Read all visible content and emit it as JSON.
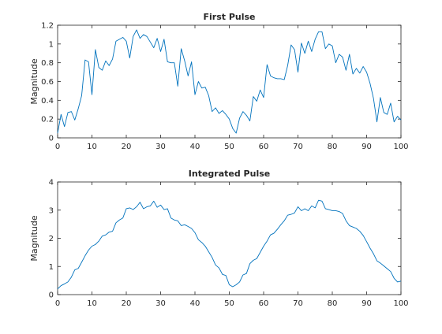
{
  "chart_data": [
    {
      "type": "line",
      "title": "First Pulse",
      "xlabel": "",
      "ylabel": "Magnitude",
      "xlim": [
        0,
        100
      ],
      "ylim": [
        0,
        1.2
      ],
      "xticks": [
        "0",
        "10",
        "20",
        "30",
        "40",
        "50",
        "60",
        "70",
        "80",
        "90",
        "100"
      ],
      "yticks": [
        "0",
        "0.2",
        "0.4",
        "0.6",
        "0.8",
        "1",
        "1.2"
      ],
      "grid": false,
      "line_color": "#0072BD",
      "series": [
        {
          "x": [
            0,
            1,
            2,
            3,
            4,
            5,
            6,
            7,
            8,
            9,
            10,
            11,
            12,
            13,
            14,
            15,
            16,
            17,
            18,
            19,
            20,
            21,
            22,
            23,
            24,
            25,
            26,
            27,
            28,
            29,
            30,
            31,
            32,
            33,
            34,
            35,
            36,
            37,
            38,
            39,
            40,
            41,
            42,
            43,
            44,
            45,
            46,
            47,
            48,
            49,
            50,
            51,
            52,
            53,
            54,
            55,
            56,
            57,
            58,
            59,
            60,
            61,
            62,
            63,
            64,
            65,
            66,
            67,
            68,
            69,
            70,
            71,
            72,
            73,
            74,
            75,
            76,
            77,
            78,
            79,
            80,
            81,
            82,
            83,
            84,
            85,
            86,
            87,
            88,
            89,
            90,
            91,
            92,
            93,
            94,
            95,
            96,
            97,
            98,
            99,
            100
          ],
          "values": [
            0.05,
            0.25,
            0.12,
            0.27,
            0.28,
            0.19,
            0.31,
            0.45,
            0.83,
            0.81,
            0.46,
            0.94,
            0.75,
            0.72,
            0.82,
            0.77,
            0.84,
            1.03,
            1.05,
            1.07,
            1.03,
            0.85,
            1.08,
            1.15,
            1.06,
            1.1,
            1.08,
            1.02,
            0.96,
            1.06,
            0.92,
            1.05,
            0.81,
            0.8,
            0.8,
            0.55,
            0.95,
            0.82,
            0.66,
            0.81,
            0.46,
            0.6,
            0.53,
            0.54,
            0.45,
            0.28,
            0.32,
            0.26,
            0.29,
            0.25,
            0.2,
            0.1,
            0.05,
            0.21,
            0.28,
            0.24,
            0.18,
            0.44,
            0.39,
            0.51,
            0.43,
            0.78,
            0.66,
            0.64,
            0.63,
            0.63,
            0.62,
            0.77,
            0.99,
            0.94,
            0.7,
            1.01,
            0.9,
            1.03,
            0.92,
            1.05,
            1.13,
            1.13,
            0.95,
            1.0,
            0.98,
            0.8,
            0.89,
            0.86,
            0.72,
            0.89,
            0.68,
            0.74,
            0.69,
            0.76,
            0.7,
            0.58,
            0.42,
            0.17,
            0.43,
            0.27,
            0.25,
            0.37,
            0.17,
            0.23,
            0.19
          ]
        }
      ]
    },
    {
      "type": "line",
      "title": "Integrated Pulse",
      "xlabel": "",
      "ylabel": "Magnitude",
      "xlim": [
        0,
        100
      ],
      "ylim": [
        0,
        4
      ],
      "xticks": [
        "0",
        "10",
        "20",
        "30",
        "40",
        "50",
        "60",
        "70",
        "80",
        "90",
        "100"
      ],
      "yticks": [
        "0",
        "1",
        "2",
        "3",
        "4"
      ],
      "grid": false,
      "line_color": "#0072BD",
      "series": [
        {
          "x": [
            0,
            1,
            2,
            3,
            4,
            5,
            6,
            7,
            8,
            9,
            10,
            11,
            12,
            13,
            14,
            15,
            16,
            17,
            18,
            19,
            20,
            21,
            22,
            23,
            24,
            25,
            26,
            27,
            28,
            29,
            30,
            31,
            32,
            33,
            34,
            35,
            36,
            37,
            38,
            39,
            40,
            41,
            42,
            43,
            44,
            45,
            46,
            47,
            48,
            49,
            50,
            51,
            52,
            53,
            54,
            55,
            56,
            57,
            58,
            59,
            60,
            61,
            62,
            63,
            64,
            65,
            66,
            67,
            68,
            69,
            70,
            71,
            72,
            73,
            74,
            75,
            76,
            77,
            78,
            79,
            80,
            81,
            82,
            83,
            84,
            85,
            86,
            87,
            88,
            89,
            90,
            91,
            92,
            93,
            94,
            95,
            96,
            97,
            98,
            99,
            100
          ],
          "values": [
            0.2,
            0.32,
            0.38,
            0.45,
            0.62,
            0.88,
            0.93,
            1.15,
            1.38,
            1.58,
            1.72,
            1.78,
            1.9,
            2.08,
            2.12,
            2.22,
            2.25,
            2.55,
            2.65,
            2.72,
            3.05,
            3.08,
            3.02,
            3.12,
            3.28,
            3.05,
            3.12,
            3.15,
            3.32,
            3.1,
            3.18,
            3.02,
            3.05,
            2.72,
            2.65,
            2.62,
            2.45,
            2.48,
            2.42,
            2.35,
            2.2,
            1.95,
            1.85,
            1.72,
            1.52,
            1.32,
            1.05,
            0.95,
            0.72,
            0.68,
            0.35,
            0.28,
            0.35,
            0.45,
            0.7,
            0.75,
            1.1,
            1.22,
            1.28,
            1.5,
            1.72,
            1.9,
            2.12,
            2.18,
            2.32,
            2.48,
            2.62,
            2.82,
            2.85,
            2.9,
            3.12,
            2.98,
            3.05,
            2.98,
            3.15,
            3.08,
            3.35,
            3.32,
            3.05,
            3.02,
            2.98,
            2.98,
            2.95,
            2.88,
            2.62,
            2.45,
            2.4,
            2.35,
            2.25,
            2.1,
            1.88,
            1.65,
            1.45,
            1.2,
            1.12,
            1.02,
            0.92,
            0.82,
            0.58,
            0.45,
            0.48
          ]
        }
      ]
    }
  ]
}
